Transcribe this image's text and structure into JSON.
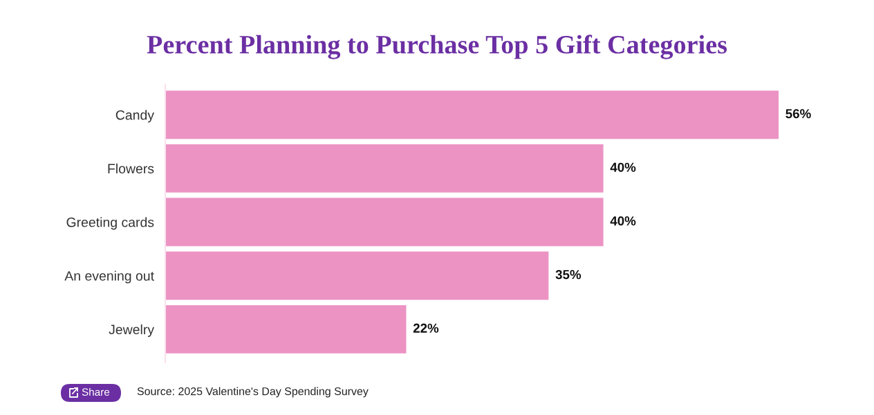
{
  "chart_data": {
    "type": "bar",
    "orientation": "horizontal",
    "title": "Percent Planning to Purchase Top 5 Gift Categories",
    "categories": [
      "Candy",
      "Flowers",
      "Greeting cards",
      "An evening out",
      "Jewelry"
    ],
    "values": [
      56,
      40,
      40,
      35,
      22
    ],
    "color": "#ec93c3",
    "value_labels": [
      "56%",
      "40%",
      "40%",
      "35%",
      "22%"
    ],
    "tick_labels": "y",
    "annotations": [
      "Share",
      "Source: 2025 Valentine's Day Spending Survey"
    ]
  }
}
